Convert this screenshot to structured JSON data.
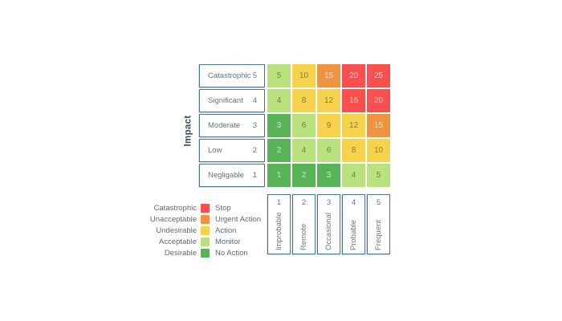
{
  "chart_data": {
    "type": "heatmap",
    "y_axis_label": "Impact",
    "rows": [
      {
        "label": "Catastrophic",
        "level": "5"
      },
      {
        "label": "Significant",
        "level": "4"
      },
      {
        "label": "Moderate",
        "level": "3"
      },
      {
        "label": "Low",
        "level": "2"
      },
      {
        "label": "Negligable",
        "level": "1"
      }
    ],
    "columns": [
      {
        "level": "1",
        "label": "Improbable"
      },
      {
        "level": "2",
        "label": "Remote"
      },
      {
        "level": "3",
        "label": "Occasional"
      },
      {
        "level": "4",
        "label": "Probable"
      },
      {
        "level": "5",
        "label": "Frequent"
      }
    ],
    "values": [
      [
        5,
        10,
        15,
        20,
        25
      ],
      [
        4,
        8,
        12,
        16,
        20
      ],
      [
        3,
        6,
        9,
        12,
        15
      ],
      [
        2,
        4,
        6,
        8,
        10
      ],
      [
        1,
        2,
        3,
        4,
        5
      ]
    ],
    "cell_tiers": [
      [
        "acceptable",
        "undesirable",
        "unacceptable",
        "catastrophic",
        "catastrophic"
      ],
      [
        "acceptable",
        "undesirable",
        "undesirable",
        "catastrophic",
        "catastrophic"
      ],
      [
        "desirable",
        "acceptable",
        "undesirable",
        "undesirable",
        "unacceptable"
      ],
      [
        "desirable",
        "acceptable",
        "acceptable",
        "undesirable",
        "undesirable"
      ],
      [
        "desirable",
        "desirable",
        "desirable",
        "acceptable",
        "acceptable"
      ]
    ],
    "tier_colors": {
      "catastrophic": "#fa4f4f",
      "unacceptable": "#ee9440",
      "undesirable": "#f6d24d",
      "acceptable": "#b9e17e",
      "desirable": "#58b457"
    },
    "legend": [
      {
        "severity": "Catastrophic",
        "tier": "catastrophic",
        "action": "Stop"
      },
      {
        "severity": "Unacceptable",
        "tier": "unacceptable",
        "action": "Urgent Action"
      },
      {
        "severity": "Undesirable",
        "tier": "undesirable",
        "action": "Action"
      },
      {
        "severity": "Acceptable",
        "tier": "acceptable",
        "action": "Monitor"
      },
      {
        "severity": "Desirable",
        "tier": "desirable",
        "action": "No Action"
      }
    ]
  }
}
